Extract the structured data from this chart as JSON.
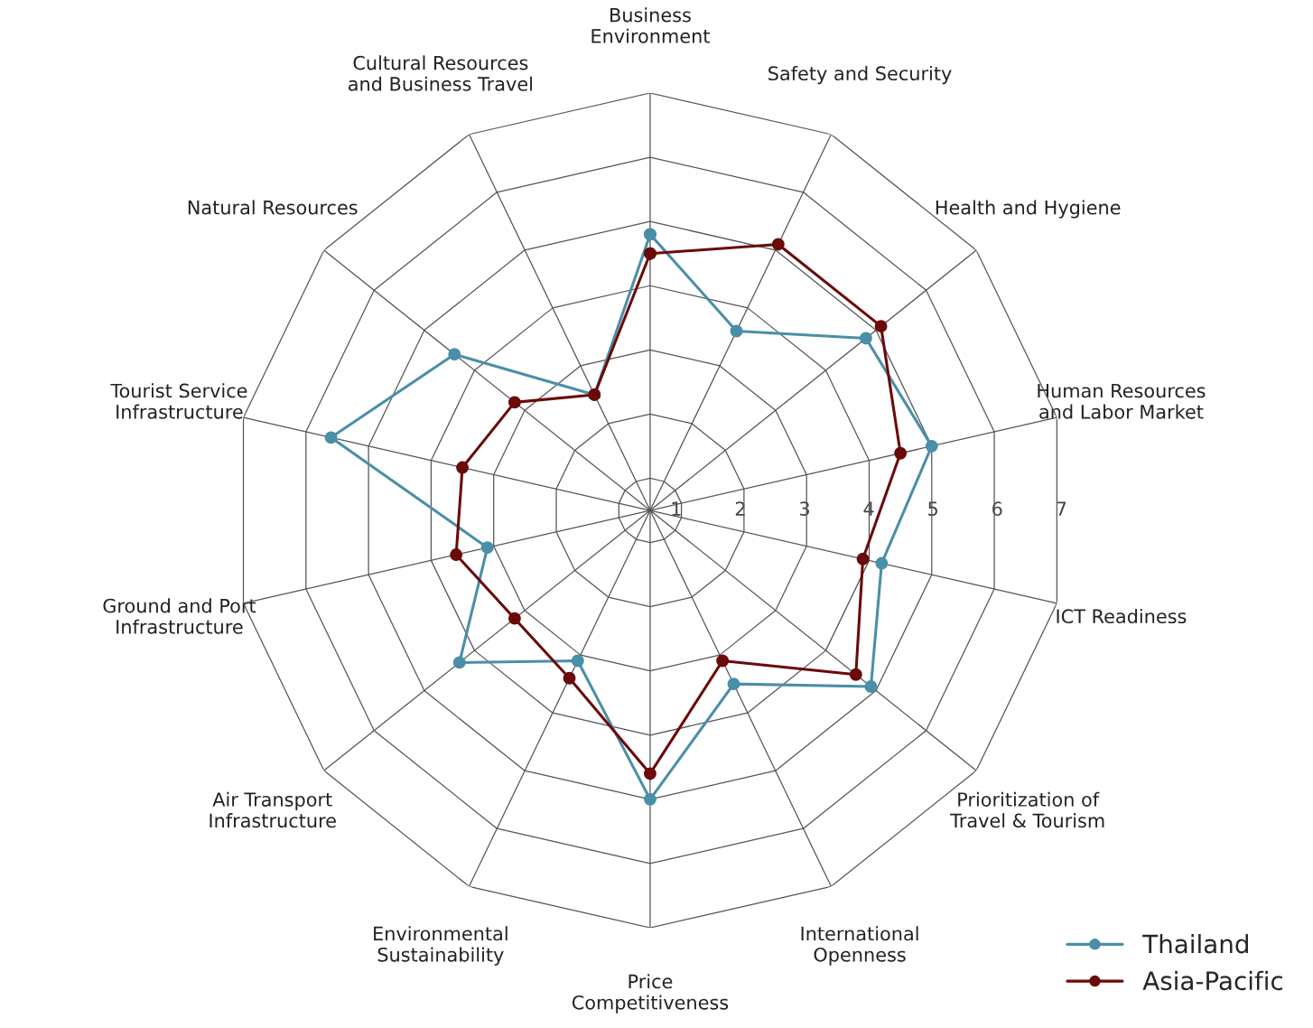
{
  "chart_data": {
    "type": "radar",
    "categories": [
      "Business\nEnvironment",
      "Safety and Security",
      "Health and Hygiene",
      "Human Resources\nand Labor Market",
      "ICT Readiness",
      "Prioritization of\nTravel & Tourism",
      "International\nOpenness",
      "Price\nCompetitiveness",
      "Environmental\nSustainability",
      "Air Transport\nInfrastructure",
      "Ground and Port\nInfrastructure",
      "Tourist Service\nInfrastructure",
      "Natural Resources",
      "Cultural Resources\nand Business Travel"
    ],
    "series": [
      {
        "name": "Thailand",
        "color": "#4a8fa8",
        "values": [
          4.8,
          3.6,
          4.8,
          5.0,
          4.2,
          4.9,
          3.5,
          5.0,
          3.1,
          4.3,
          3.1,
          5.6,
          4.4,
          2.5
        ]
      },
      {
        "name": "Asia-Pacific",
        "color": "#6b0a0a",
        "values": [
          4.5,
          5.1,
          5.1,
          4.5,
          3.9,
          4.6,
          3.1,
          4.6,
          3.4,
          3.2,
          3.6,
          3.5,
          3.2,
          2.5
        ]
      }
    ],
    "ylim": [
      0.5,
      7
    ],
    "yticks": [
      1,
      2,
      3,
      4,
      5,
      6,
      7
    ],
    "grid": true,
    "marker": "circle",
    "legend": "bottom right"
  }
}
